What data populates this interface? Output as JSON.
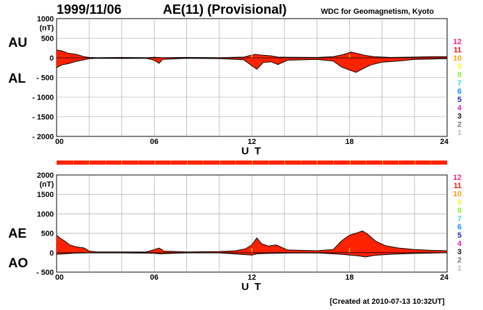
{
  "header": {
    "date": "1999/11/06",
    "title": "AE(11) (Provisional)",
    "institution": "WDC for Geomagnetism, Kyoto"
  },
  "footer": {
    "created": "[Created at 2010-07-13 10:32UT]"
  },
  "colors": {
    "fill": "#ff2200",
    "gap": "#ffcc00",
    "line": "#000000",
    "grid": "#999999",
    "bar": "#ff2200"
  },
  "station_count_scale": {
    "labels": [
      "12",
      "11",
      "10",
      "9",
      "8",
      "7",
      "6",
      "5",
      "4",
      "3",
      "2",
      "1"
    ],
    "colors": [
      "#ff1a8c",
      "#ee1111",
      "#ff9900",
      "#ffee33",
      "#88ee44",
      "#33dddd",
      "#1188ff",
      "#2222aa",
      "#cc22cc",
      "#111111",
      "#777777",
      "#bbbbbb"
    ]
  },
  "chart_data": [
    {
      "type": "area",
      "panel": "top",
      "side_labels": [
        "AU",
        "AL"
      ],
      "unit": "(nT)",
      "xlabel": "U T",
      "x_ticks": [
        "00",
        "06",
        "12",
        "18",
        "24"
      ],
      "y_ticks": [
        "1000",
        "500",
        "0",
        "- 500",
        "- 1000",
        "- 1500",
        "- 2000"
      ],
      "xlim": [
        0,
        24
      ],
      "ylim": [
        -2000,
        1000
      ],
      "y_tick_values": [
        1000,
        500,
        0,
        -500,
        -1000,
        -1500,
        -2000
      ],
      "grid": true,
      "series": [
        {
          "name": "AU",
          "x": [
            0,
            0.3,
            0.7,
            1.2,
            1.7,
            2.0,
            2.5,
            4,
            5.5,
            6,
            6.5,
            8,
            10,
            11.5,
            12.2,
            12.6,
            13.2,
            13.6,
            14.2,
            16,
            17,
            17.6,
            18.1,
            18.5,
            19,
            19.5,
            20.5,
            22,
            23,
            24
          ],
          "values": [
            200,
            180,
            120,
            90,
            30,
            10,
            5,
            10,
            5,
            15,
            5,
            10,
            5,
            20,
            90,
            70,
            50,
            20,
            15,
            10,
            30,
            80,
            150,
            110,
            60,
            30,
            10,
            20,
            30,
            30
          ]
        },
        {
          "name": "AL",
          "x": [
            0,
            0.3,
            0.7,
            1.2,
            1.7,
            2.0,
            2.5,
            4,
            5.5,
            6,
            6.3,
            6.5,
            8,
            10,
            11.5,
            12,
            12.3,
            12.7,
            13.2,
            13.6,
            14.2,
            16,
            17,
            17.5,
            18,
            18.4,
            18.8,
            19.3,
            20,
            21,
            22,
            23,
            24
          ],
          "values": [
            -250,
            -180,
            -150,
            -90,
            -50,
            -20,
            -10,
            -15,
            -10,
            -60,
            -140,
            -40,
            -10,
            -20,
            -50,
            -200,
            -290,
            -120,
            -100,
            -170,
            -60,
            -40,
            -80,
            -230,
            -310,
            -370,
            -280,
            -180,
            -110,
            -80,
            -40,
            -30,
            -20
          ]
        }
      ]
    },
    {
      "type": "area",
      "panel": "bottom",
      "side_labels": [
        "AE",
        "AO"
      ],
      "unit": "(nT)",
      "xlabel": "U T",
      "x_ticks": [
        "00",
        "06",
        "12",
        "18",
        "24"
      ],
      "y_ticks": [
        "2000",
        "1500",
        "1000",
        "500",
        "0",
        "- 500"
      ],
      "xlim": [
        0,
        24
      ],
      "ylim": [
        -500,
        2000
      ],
      "y_tick_values": [
        2000,
        1500,
        1000,
        500,
        0,
        -500
      ],
      "grid": true,
      "series": [
        {
          "name": "AE",
          "x": [
            0,
            0.2,
            0.5,
            0.8,
            1.2,
            1.7,
            2.0,
            2.5,
            4,
            5.5,
            6,
            6.3,
            6.6,
            8,
            10,
            11,
            11.6,
            12,
            12.3,
            12.6,
            13,
            13.5,
            14.2,
            16,
            17,
            17.5,
            18,
            18.4,
            18.8,
            19.1,
            19.6,
            20.2,
            21,
            22,
            23,
            24
          ],
          "values": [
            450,
            380,
            300,
            200,
            150,
            120,
            40,
            20,
            20,
            20,
            80,
            120,
            40,
            20,
            30,
            50,
            100,
            200,
            380,
            230,
            170,
            200,
            70,
            50,
            80,
            300,
            450,
            500,
            560,
            480,
            300,
            180,
            120,
            80,
            60,
            50
          ]
        },
        {
          "name": "AO",
          "x": [
            0,
            0.5,
            1.2,
            2.0,
            4,
            6,
            6.3,
            8,
            10,
            12,
            12.3,
            13,
            14,
            16,
            17.5,
            18,
            18.5,
            19,
            19.5,
            20.5,
            22,
            23,
            24
          ],
          "values": [
            -40,
            -30,
            -10,
            -5,
            -5,
            -15,
            -30,
            -5,
            -5,
            -60,
            -30,
            -20,
            -10,
            -5,
            -40,
            -60,
            -80,
            -110,
            -70,
            -40,
            -20,
            -10,
            0
          ]
        }
      ]
    }
  ]
}
